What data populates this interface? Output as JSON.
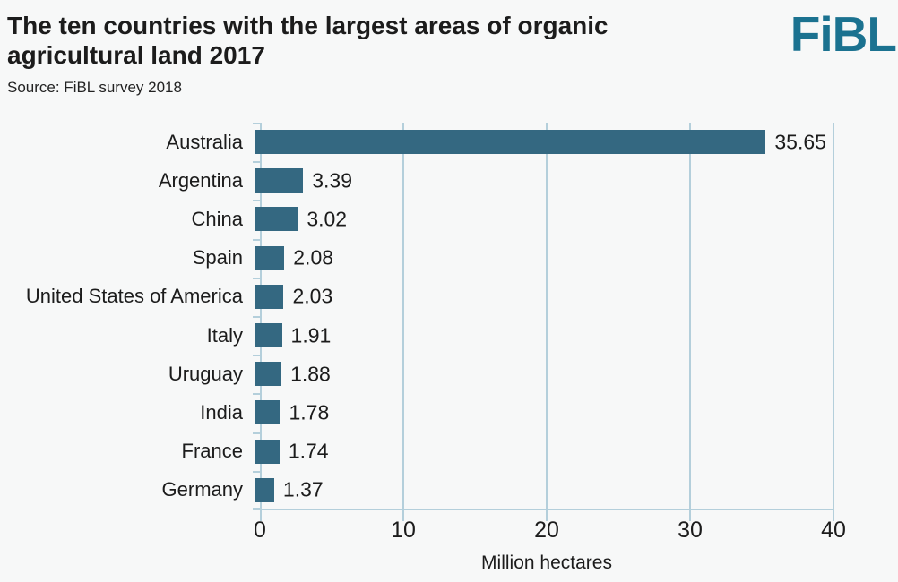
{
  "header": {
    "title": "The ten countries with the largest areas of organic\nagricultural land 2017",
    "source": "Source: FiBL survey 2018",
    "logo_text": "FiBL"
  },
  "chart_data": {
    "type": "bar",
    "orientation": "horizontal",
    "categories": [
      "Australia",
      "Argentina",
      "China",
      "Spain",
      "United States of America",
      "Italy",
      "Uruguay",
      "India",
      "France",
      "Germany"
    ],
    "values": [
      35.65,
      3.39,
      3.02,
      2.08,
      2.03,
      1.91,
      1.88,
      1.78,
      1.74,
      1.37
    ],
    "value_labels": [
      "35.65",
      "3.39",
      "3.02",
      "2.08",
      "2.03",
      "1.91",
      "1.88",
      "1.78",
      "1.74",
      "1.37"
    ],
    "title": "The ten countries with the largest areas of organic agricultural land 2017",
    "xlabel": "Million hectares",
    "ylabel": "",
    "xlim": [
      0,
      40
    ],
    "xticks": [
      0,
      10,
      20,
      30,
      40
    ],
    "grid": "vertical gridlines at each x tick",
    "legend": "none",
    "bar_color": "#346881"
  },
  "colors": {
    "background": "#f7f8f8",
    "bar": "#346881",
    "gridline": "#b4cfdb",
    "text": "#1c1c1c",
    "logo": "#1b7290"
  }
}
